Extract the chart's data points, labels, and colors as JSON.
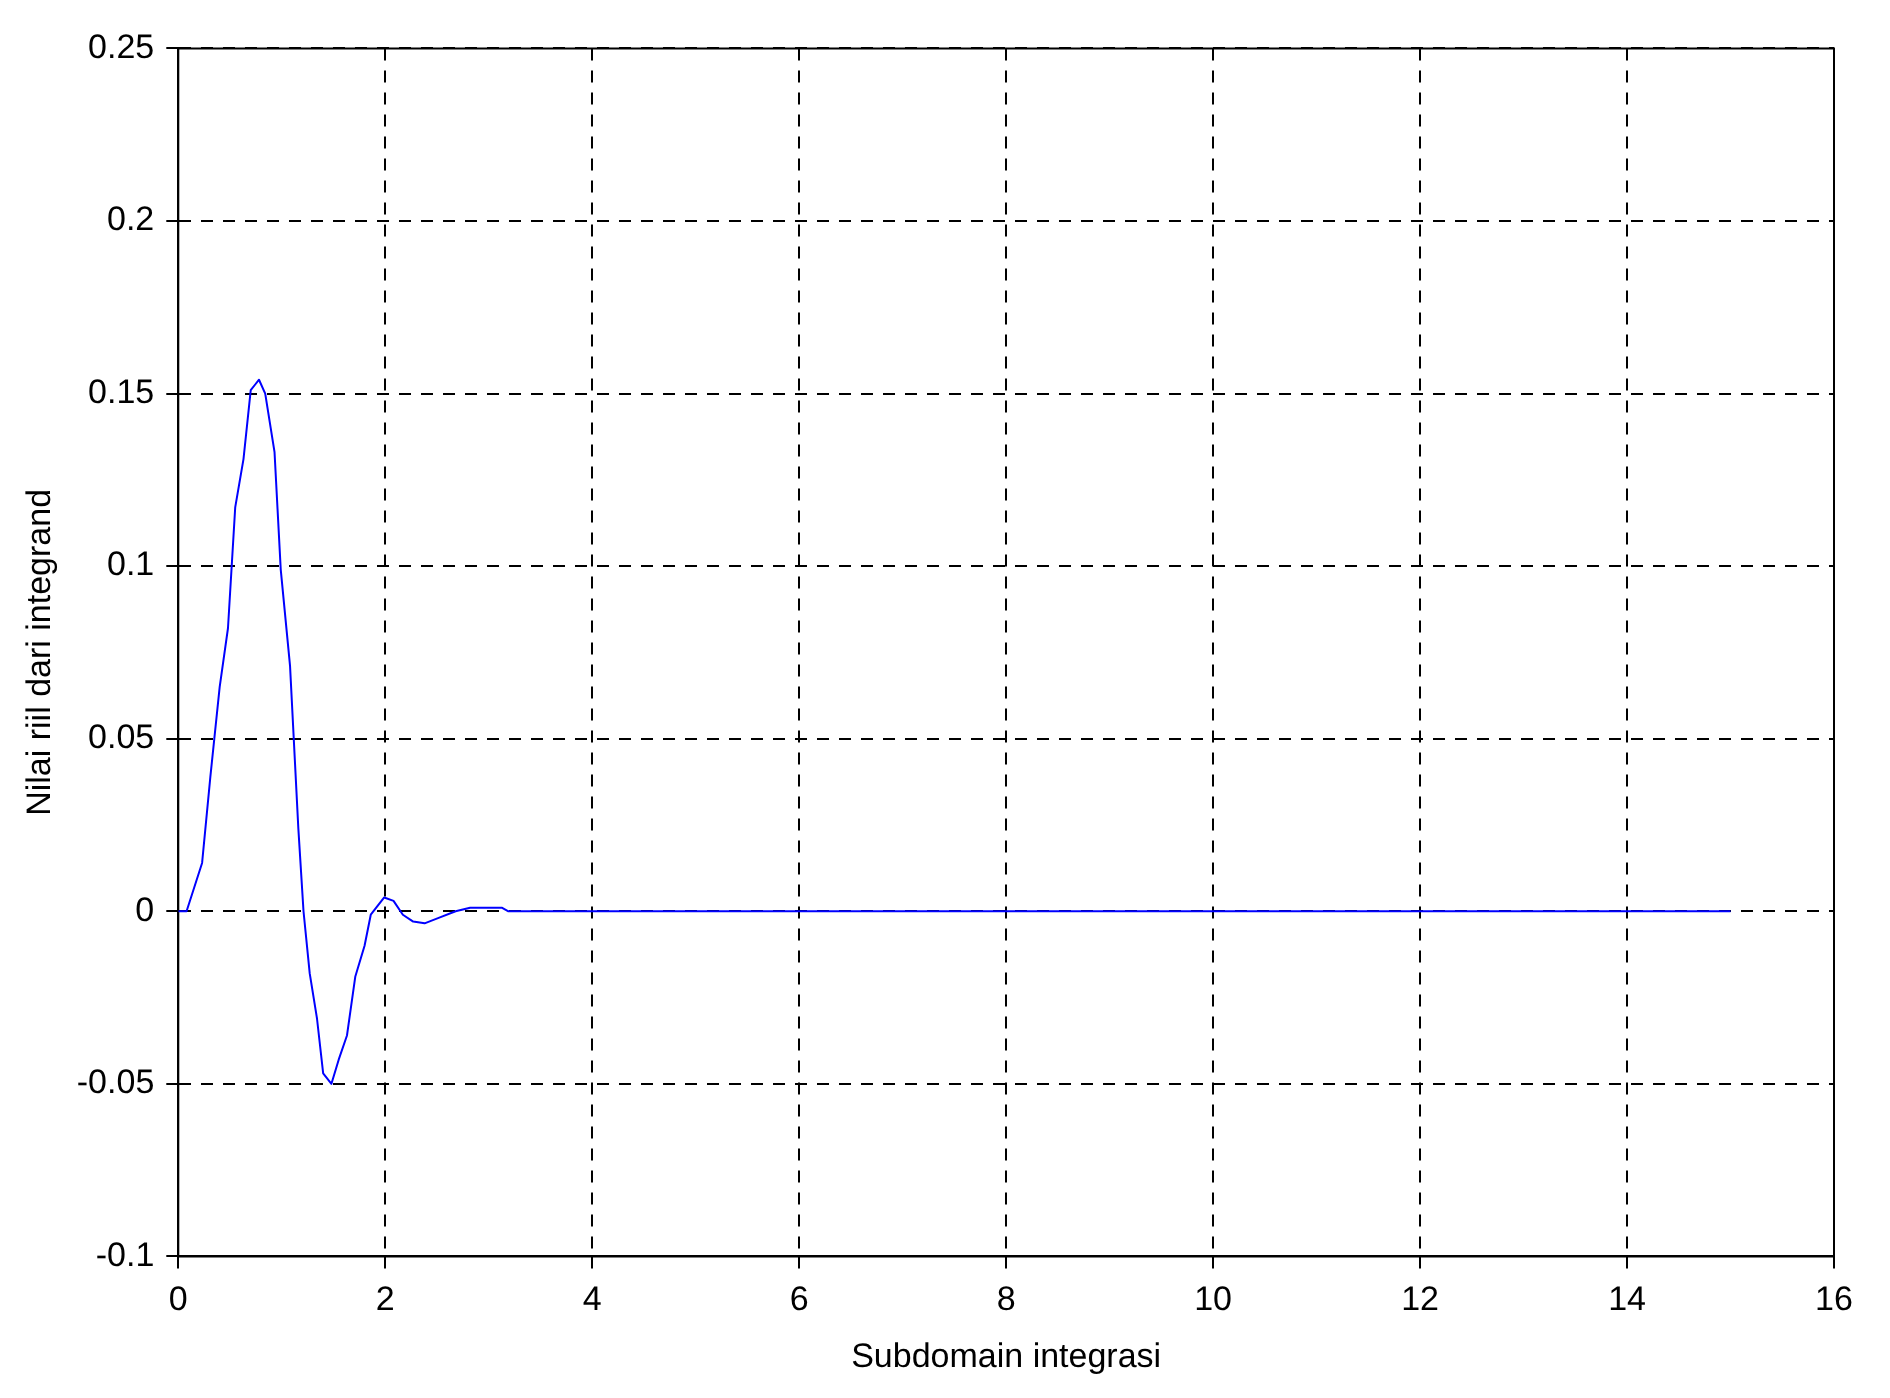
{
  "chart_data": {
    "type": "line",
    "xlabel": "Subdomain integrasi",
    "ylabel": "Nilai riil dari integrand",
    "xlim": [
      0,
      16
    ],
    "xticks": [
      0,
      2,
      4,
      6,
      8,
      10,
      12,
      14,
      16
    ],
    "ylim": [
      -0.1,
      0.25
    ],
    "yticks": [
      -0.1,
      -0.05,
      0,
      0.05,
      0.1,
      0.15,
      0.2,
      0.25
    ],
    "grid": true,
    "line_style": "solid",
    "marker": "none",
    "series": [
      {
        "color": "#0000ff",
        "x": [
          0,
          0.08,
          0.23,
          0.31,
          0.4,
          0.48,
          0.55,
          0.63,
          0.7,
          0.78,
          0.84,
          0.93,
          0.99,
          1.08,
          1.16,
          1.21,
          1.27,
          1.34,
          1.4,
          1.48,
          1.55,
          1.63,
          1.71,
          1.8,
          1.86,
          1.99,
          2.08,
          2.17,
          2.27,
          2.38,
          2.51,
          2.68,
          2.82,
          3.13,
          3.19,
          15
        ],
        "values": [
          0,
          0,
          0.014,
          0.039,
          0.065,
          0.082,
          0.117,
          0.131,
          0.151,
          0.154,
          0.15,
          0.133,
          0.099,
          0.071,
          0.024,
          0,
          -0.018,
          -0.031,
          -0.047,
          -0.05,
          -0.043,
          -0.036,
          -0.019,
          -0.01,
          -0.001,
          0.004,
          0.003,
          -0.001,
          -0.003,
          -0.0035,
          -0.002,
          0,
          0.001,
          0.001,
          0,
          0
        ]
      }
    ]
  }
}
